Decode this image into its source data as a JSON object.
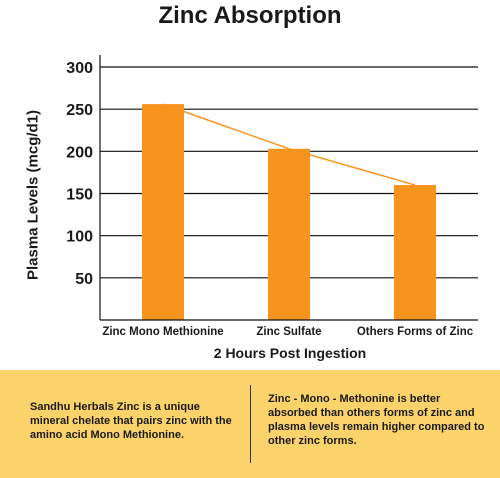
{
  "chart_data": {
    "type": "bar",
    "title": "Zinc Absorption",
    "ylabel": "Plasma Levels (mcg/d1)",
    "xlabel": "2 Hours Post Ingestion",
    "categories": [
      "Zinc Mono Methionine",
      "Zinc Sulfate",
      "Others Forms of Zinc"
    ],
    "values": [
      256,
      203,
      160
    ],
    "ylim": [
      0,
      300
    ],
    "yticks": [
      50,
      100,
      150,
      200,
      250,
      300
    ],
    "grid": true,
    "trend_line": true,
    "colors": {
      "bar": "#f7941d",
      "trend": "#f7941d",
      "grid": "#111111"
    }
  },
  "info": {
    "left_text": "Sandhu Herbals Zinc is a unique mineral chelate that pairs zinc with the amino acid Mono Methionine.",
    "right_text": "Zinc - Mono - Methonine is better absorbed than others forms of zinc and plasma levels remain higher compared to other zinc forms.",
    "background": "#fbd36a"
  }
}
